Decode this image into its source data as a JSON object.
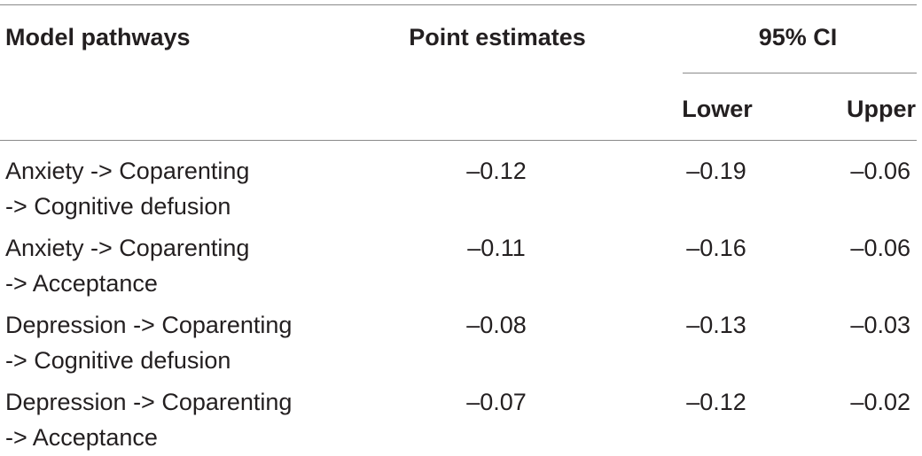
{
  "header": {
    "col1": "Model pathways",
    "col2": "Point estimates",
    "ci": "95% CI",
    "lower": "Lower",
    "upper": "Upper"
  },
  "rows": [
    {
      "pathway": [
        "Anxiety -> Coparenting",
        "-> Cognitive defusion"
      ],
      "estimate": "–0.12",
      "lower": "–0.19",
      "upper": "–0.06"
    },
    {
      "pathway": [
        "Anxiety -> Coparenting",
        "-> Acceptance"
      ],
      "estimate": "–0.11",
      "lower": "–0.16",
      "upper": "–0.06"
    },
    {
      "pathway": [
        "Depression -> Coparenting",
        "-> Cognitive defusion"
      ],
      "estimate": "–0.08",
      "lower": "–0.13",
      "upper": "–0.03"
    },
    {
      "pathway": [
        "Depression -> Coparenting",
        "-> Acceptance"
      ],
      "estimate": "–0.07",
      "lower": "–0.12",
      "upper": "–0.02"
    }
  ]
}
